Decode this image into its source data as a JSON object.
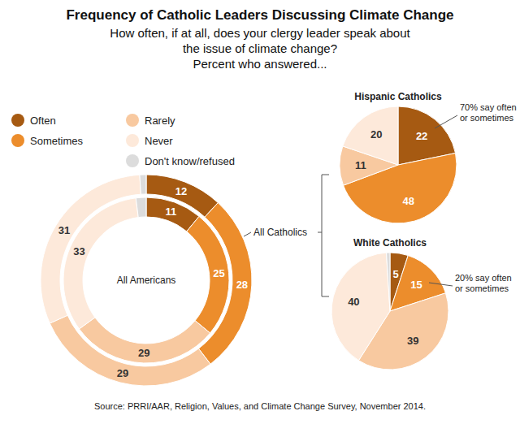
{
  "chart_data": {
    "type": "pie",
    "title": "Frequency of Catholic Leaders Discussing Climate Change",
    "subtitle": [
      "How often, if at all, does your clergy leader speak about",
      "the issue of climate change?",
      "Percent who answered..."
    ],
    "categories": [
      "Often",
      "Sometimes",
      "Rarely",
      "Never",
      "Don't know/refused"
    ],
    "colors": [
      "#a65a12",
      "#ec8d2c",
      "#f8c9a0",
      "#fde9da",
      "#dcdcdc"
    ],
    "series": [
      {
        "name": "All Americans",
        "values": [
          11,
          25,
          29,
          33,
          2
        ],
        "value_labels": [
          "11",
          "25",
          "29",
          "33",
          null
        ]
      },
      {
        "name": "All Catholics",
        "values": [
          12,
          28,
          29,
          31,
          1
        ],
        "value_labels": [
          "12",
          "28",
          "29",
          "31",
          null
        ]
      },
      {
        "name": "Hispanic Catholics",
        "values": [
          22,
          48,
          11,
          20,
          0
        ],
        "value_labels": [
          "22",
          "48",
          "11",
          "20",
          null
        ],
        "annotation": "70% say often or sometimes"
      },
      {
        "name": "White Catholics",
        "values": [
          5,
          15,
          39,
          40,
          1
        ],
        "value_labels": [
          "5",
          "15",
          "39",
          "40",
          null
        ],
        "annotation": "20% say often or sometimes"
      }
    ],
    "data_labels": true,
    "legend": "upper-left",
    "source": "Source: PRRI/AAR, Religion, Values, and Climate Change Survey, November 2014."
  }
}
